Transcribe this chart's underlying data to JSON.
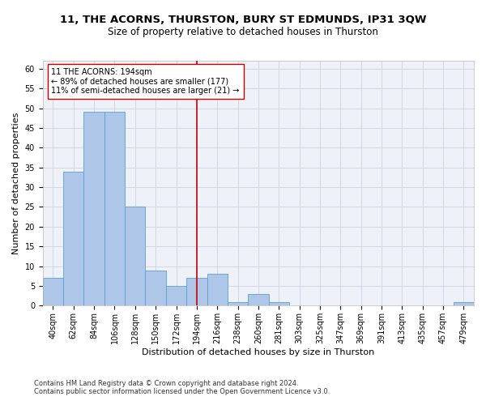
{
  "title1": "11, THE ACORNS, THURSTON, BURY ST EDMUNDS, IP31 3QW",
  "title2": "Size of property relative to detached houses in Thurston",
  "xlabel": "Distribution of detached houses by size in Thurston",
  "ylabel": "Number of detached properties",
  "footnote1": "Contains HM Land Registry data © Crown copyright and database right 2024.",
  "footnote2": "Contains public sector information licensed under the Open Government Licence v3.0.",
  "categories": [
    "40sqm",
    "62sqm",
    "84sqm",
    "106sqm",
    "128sqm",
    "150sqm",
    "172sqm",
    "194sqm",
    "216sqm",
    "238sqm",
    "260sqm",
    "281sqm",
    "303sqm",
    "325sqm",
    "347sqm",
    "369sqm",
    "391sqm",
    "413sqm",
    "435sqm",
    "457sqm",
    "479sqm"
  ],
  "values": [
    7,
    34,
    49,
    49,
    25,
    9,
    5,
    7,
    8,
    1,
    3,
    1,
    0,
    0,
    0,
    0,
    0,
    0,
    0,
    0,
    1
  ],
  "bar_color": "#aec6e8",
  "bar_edge_color": "#5a9fd4",
  "bar_width": 1.0,
  "vline_idx": 7,
  "vline_color": "#cc0000",
  "annotation_line1": "11 THE ACORNS: 194sqm",
  "annotation_line2": "← 89% of detached houses are smaller (177)",
  "annotation_line3": "11% of semi-detached houses are larger (21) →",
  "annotation_box_color": "#cc0000",
  "ylim": [
    0,
    62
  ],
  "yticks": [
    0,
    5,
    10,
    15,
    20,
    25,
    30,
    35,
    40,
    45,
    50,
    55,
    60
  ],
  "grid_color": "#d0d8e8",
  "background_color": "#eef2f8",
  "title1_fontsize": 9.5,
  "title2_fontsize": 8.5,
  "xlabel_fontsize": 8,
  "ylabel_fontsize": 8,
  "tick_fontsize": 7,
  "annotation_fontsize": 7,
  "footnote_fontsize": 6
}
